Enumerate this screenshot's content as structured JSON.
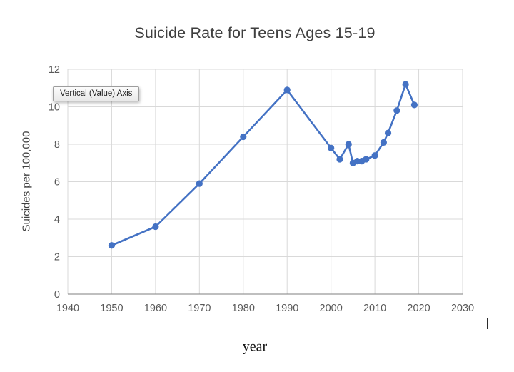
{
  "tooltip": {
    "text": "Vertical (Value) Axis"
  },
  "chart_data": {
    "type": "line",
    "title": "Suicide Rate for Teens Ages 15-19",
    "xlabel": "year",
    "ylabel": "Suicides per 100,000",
    "x": [
      1950,
      1960,
      1970,
      1980,
      1990,
      2000,
      2002,
      2004,
      2005,
      2006,
      2007,
      2008,
      2010,
      2012,
      2013,
      2015,
      2017,
      2019
    ],
    "y": [
      2.6,
      3.6,
      5.9,
      8.4,
      10.9,
      7.8,
      7.2,
      8.0,
      7.0,
      7.1,
      7.1,
      7.2,
      7.4,
      8.1,
      8.6,
      9.8,
      11.2,
      10.1
    ],
    "xlim": [
      1940,
      2030
    ],
    "ylim": [
      0,
      12
    ],
    "xticks": [
      1940,
      1950,
      1960,
      1970,
      1980,
      1990,
      2000,
      2010,
      2020,
      2030
    ],
    "yticks": [
      0,
      2,
      4,
      6,
      8,
      10,
      12
    ],
    "grid": true,
    "legend": false,
    "colors": {
      "line": "#4472C4",
      "marker": "#4472C4",
      "grid": "#D9D9D9",
      "axis": "#7F7F7F",
      "tick_text": "#595959",
      "title_text": "#3F3F3F"
    }
  }
}
